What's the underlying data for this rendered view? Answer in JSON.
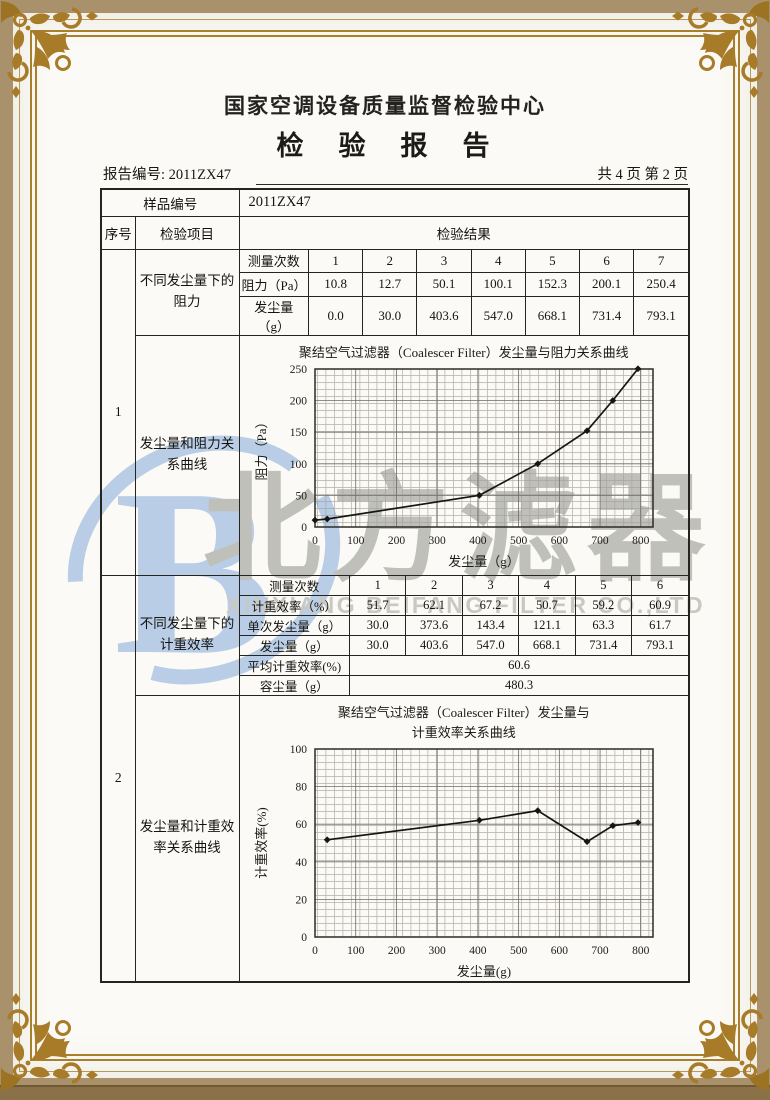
{
  "page": {
    "org_title": "国家空调设备质量监督检验中心",
    "report_title": "检　验　报　告",
    "report_no": "报告编号: 2011ZX47",
    "page_info": "共 4 页 第 2 页"
  },
  "sample": {
    "label": "样品编号",
    "value": "2011ZX47"
  },
  "columns": {
    "seq": "序号",
    "item": "检验项目",
    "result": "检验结果"
  },
  "section1": {
    "seq": "1",
    "item_row1": "不同发尘量下的阻力",
    "item_row2": "发尘量和阻力关系曲线",
    "table": {
      "row_labels": [
        "测量次数",
        "阻力（Pa）",
        "发尘量（g）"
      ],
      "counts": [
        "1",
        "2",
        "3",
        "4",
        "5",
        "6",
        "7"
      ],
      "resistance": [
        "10.8",
        "12.7",
        "50.1",
        "100.1",
        "152.3",
        "200.1",
        "250.4"
      ],
      "dust": [
        "0.0",
        "30.0",
        "403.6",
        "547.0",
        "668.1",
        "731.4",
        "793.1"
      ]
    }
  },
  "section2": {
    "seq": "2",
    "item_row1": "不同发尘量下的计重效率",
    "item_row2": "发尘量和计重效率关系曲线",
    "table": {
      "row_labels": [
        "测量次数",
        "计重效率（%）",
        "单次发尘量（g）",
        "发尘量（g）",
        "平均计重效率(%)",
        "容尘量（g）"
      ],
      "counts": [
        "1",
        "2",
        "3",
        "4",
        "5",
        "6"
      ],
      "efficiency": [
        "51.7",
        "62.1",
        "67.2",
        "50.7",
        "59.2",
        "60.9"
      ],
      "single_dust": [
        "30.0",
        "373.6",
        "143.4",
        "121.1",
        "63.3",
        "61.7"
      ],
      "dust": [
        "30.0",
        "403.6",
        "547.0",
        "668.1",
        "731.4",
        "793.1"
      ],
      "avg_efficiency": "60.6",
      "dust_capacity": "480.3"
    }
  },
  "watermark": {
    "logo_letter": "B",
    "text_cn": "北方滤器",
    "text_en": "XINXIANG BEIFANG FILTER CO.,LTD",
    "logo_color": "#b9cee6",
    "text_color": "#c0c0bb"
  },
  "frame_colors": {
    "outer_band": "#a8916b",
    "gold_line": "#a8802c",
    "ornament": "#a87b28"
  },
  "chart_data": [
    {
      "type": "line",
      "title": "聚结空气过滤器（Coalescer Filter）发尘量与阻力关系曲线",
      "xlabel": "发尘量（g）",
      "ylabel": "阻力（Pa）",
      "x": [
        0,
        30.0,
        403.6,
        547.0,
        668.1,
        731.4,
        793.1
      ],
      "y": [
        10.8,
        12.7,
        50.1,
        100.1,
        152.3,
        200.1,
        250.4
      ],
      "xlim": [
        0,
        830
      ],
      "ylim": [
        0,
        250
      ],
      "xticks": [
        0,
        100,
        200,
        300,
        400,
        500,
        600,
        700,
        800
      ],
      "yticks": [
        0,
        50,
        100,
        150,
        200,
        250
      ],
      "grid": true,
      "legend": "none",
      "marker": "diamond"
    },
    {
      "type": "line",
      "title": "聚结空气过滤器（Coalescer Filter）发尘量与",
      "title2": "计重效率关系曲线",
      "xlabel": "发尘量(g)",
      "ylabel": "计重效率(%)",
      "x": [
        30.0,
        403.6,
        547.0,
        668.1,
        731.4,
        793.1
      ],
      "y": [
        51.7,
        62.1,
        67.2,
        50.7,
        59.2,
        60.9
      ],
      "xlim": [
        0,
        830
      ],
      "ylim": [
        0,
        100
      ],
      "xticks": [
        0,
        100,
        200,
        300,
        400,
        500,
        600,
        700,
        800
      ],
      "yticks": [
        0,
        20,
        40,
        60,
        80,
        100
      ],
      "grid": true,
      "legend": "none",
      "marker": "diamond"
    }
  ]
}
